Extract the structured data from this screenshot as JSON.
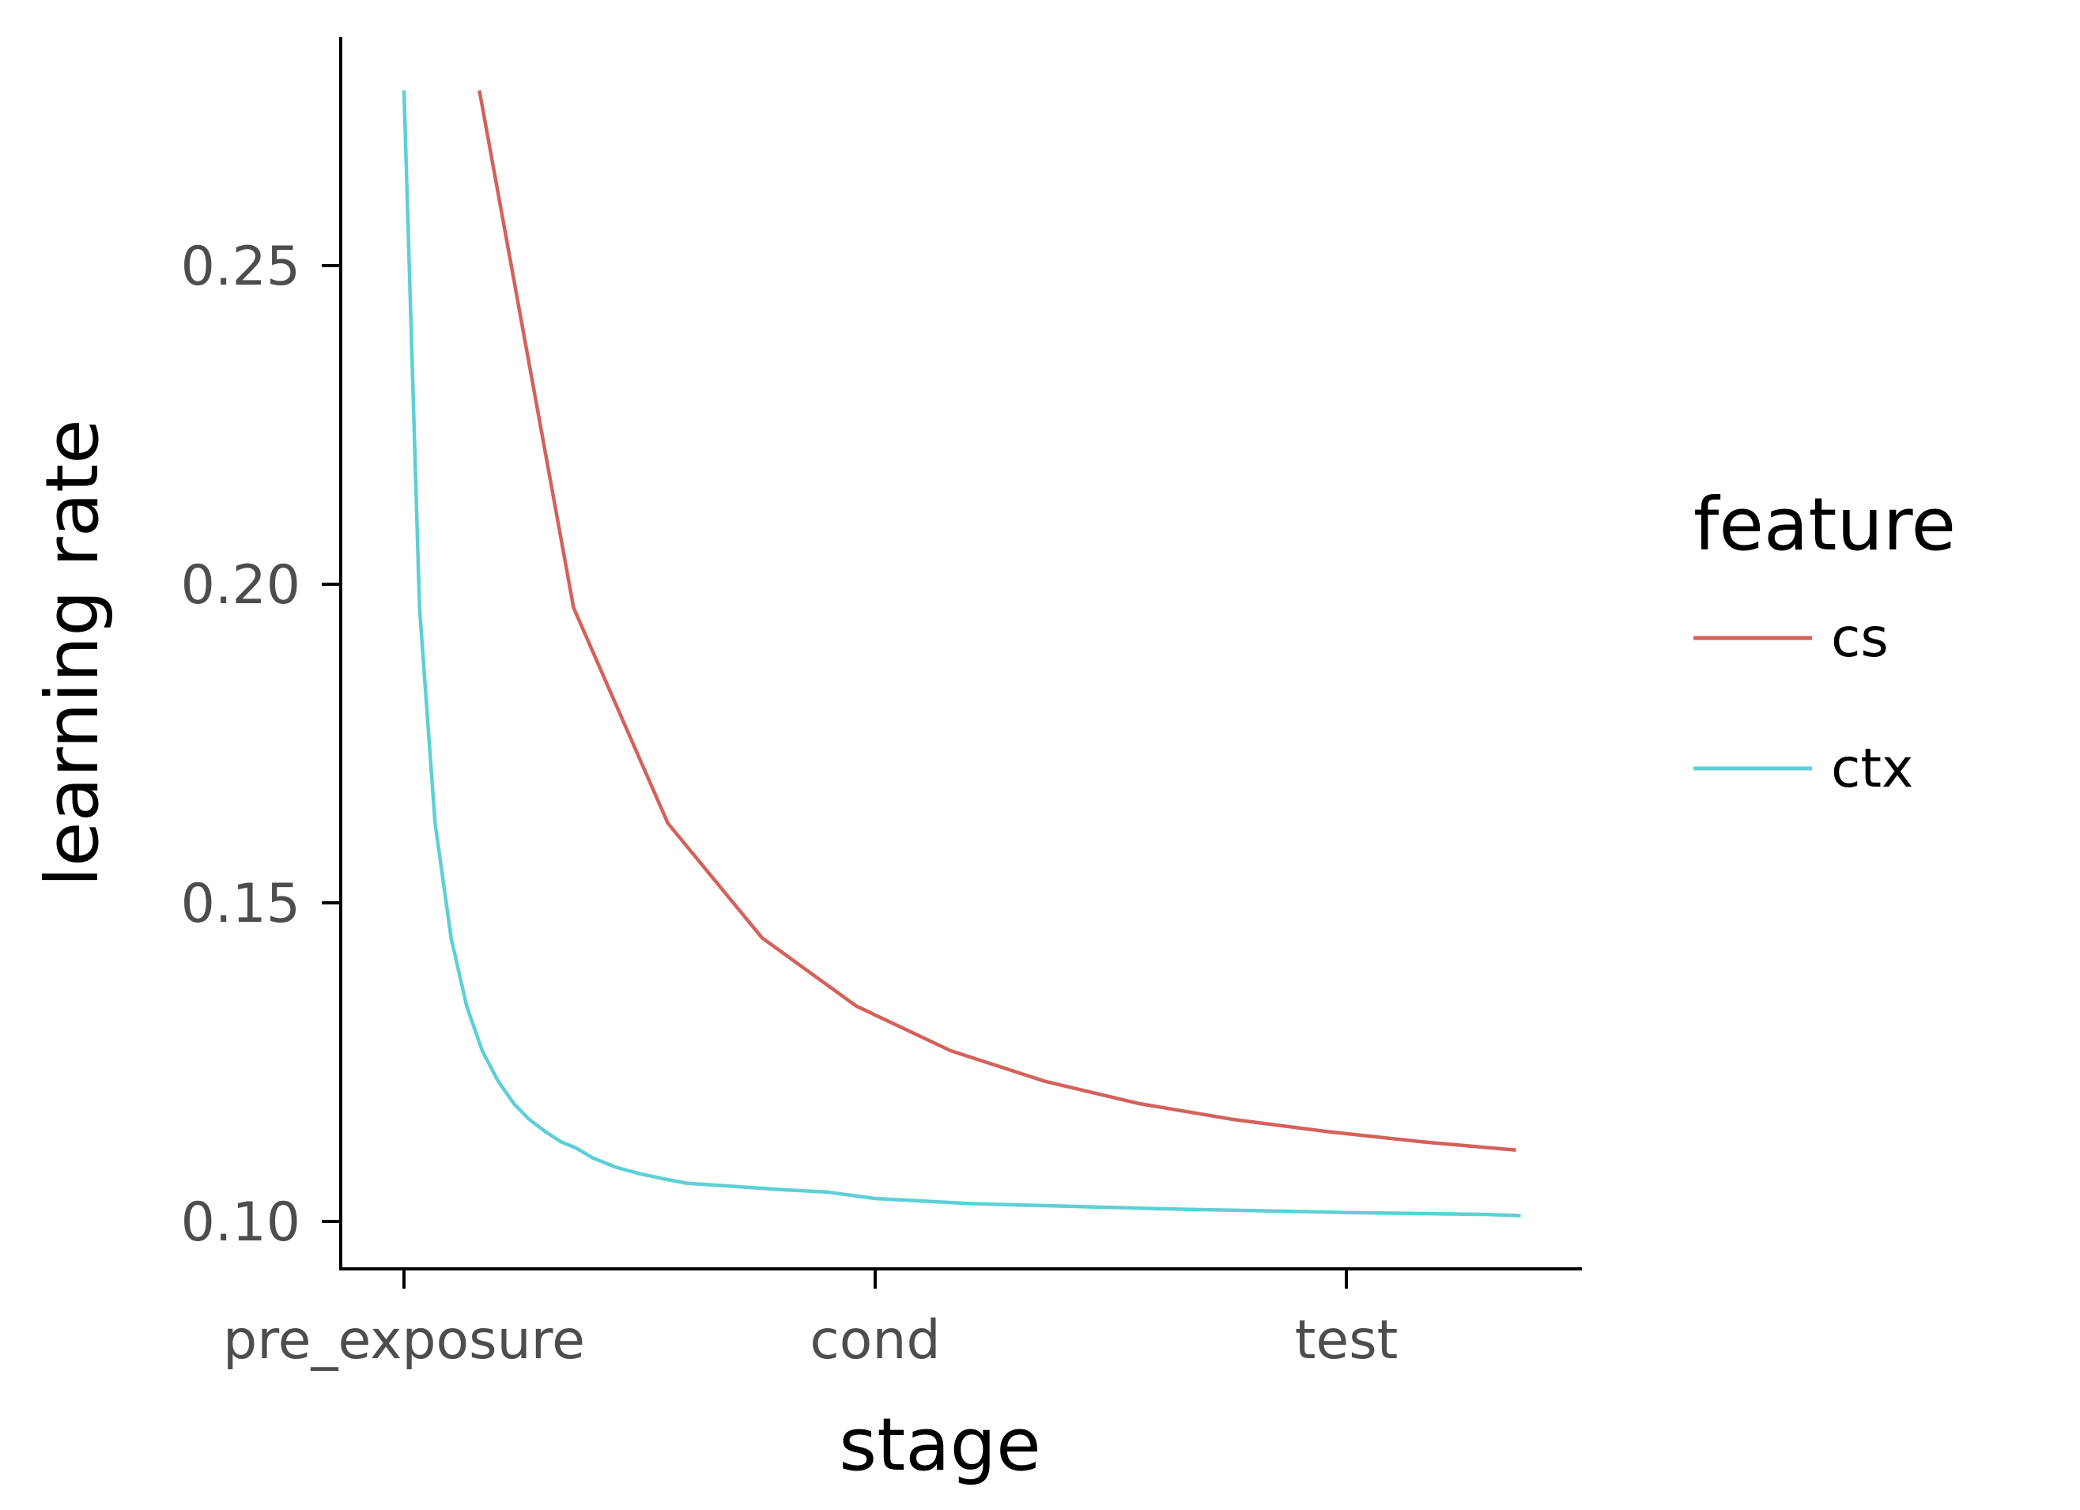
{
  "chart_data": {
    "type": "line",
    "title": "",
    "xlabel": "stage",
    "ylabel": "learning rate",
    "x_categories": [
      "pre_exposure",
      "cond",
      "test"
    ],
    "y_ticks": [
      "0.10",
      "0.15",
      "0.20",
      "0.25"
    ],
    "y_tick_values": [
      0.1,
      0.15,
      0.2,
      0.25
    ],
    "ylim": [
      0.0925,
      0.2855
    ],
    "grid": false,
    "legend": {
      "title": "feature",
      "position": "right",
      "entries": [
        "cs",
        "ctx"
      ]
    },
    "series": [
      {
        "name": "cs",
        "color": "#D4625A",
        "points": [
          [
            "pre_exposure",
            0.2775
          ],
          [
            "pre_exposure",
            0.1963
          ],
          [
            "pre_exposure",
            0.1625
          ],
          [
            "pre_exposure",
            0.1445
          ],
          [
            "cond",
            0.1338
          ],
          [
            "cond",
            0.1268
          ],
          [
            "cond",
            0.122
          ],
          [
            "test",
            0.1185
          ],
          [
            "test",
            0.116
          ],
          [
            "test",
            0.1141
          ],
          [
            "test",
            0.1125
          ],
          [
            "test",
            0.1112
          ]
        ],
        "x_positions": [
          0.16,
          0.36,
          0.56,
          0.76,
          0.96,
          1.16,
          1.36,
          1.56,
          1.76,
          1.96,
          2.16,
          2.36
        ]
      },
      {
        "name": "ctx",
        "color": "#5ECFD6",
        "points": [
          [
            "pre_exposure",
            0.2775
          ],
          [
            "pre_exposure",
            0.1963
          ],
          [
            "pre_exposure",
            0.1625
          ],
          [
            "pre_exposure",
            0.1445
          ],
          [
            "pre_exposure",
            0.1338
          ],
          [
            "pre_exposure",
            0.1268
          ],
          [
            "pre_exposure",
            0.122
          ],
          [
            "pre_exposure",
            0.1185
          ],
          [
            "pre_exposure",
            0.116
          ],
          [
            "pre_exposure",
            0.1141
          ],
          [
            "pre_exposure",
            0.1125
          ],
          [
            "pre_exposure",
            0.1115
          ],
          [
            "pre_exposure",
            0.11
          ],
          [
            "pre_exposure",
            0.1085
          ],
          [
            "pre_exposure",
            0.1075
          ],
          [
            "pre_exposure",
            0.1067
          ],
          [
            "pre_exposure",
            0.106
          ],
          [
            "pre_exposure",
            0.1055
          ],
          [
            "pre_exposure",
            0.105
          ],
          [
            "pre_exposure",
            0.1046
          ],
          [
            "cond",
            0.1036
          ],
          [
            "cond",
            0.1028
          ],
          [
            "cond",
            0.1024
          ],
          [
            "cond",
            0.102
          ],
          [
            "test",
            0.1017
          ],
          [
            "test",
            0.1014
          ],
          [
            "test",
            0.1012
          ],
          [
            "test",
            0.1011
          ],
          [
            "test",
            0.1009
          ]
        ],
        "x_positions": [
          0.0,
          0.033,
          0.066,
          0.1,
          0.133,
          0.166,
          0.2,
          0.233,
          0.266,
          0.3,
          0.333,
          0.366,
          0.4,
          0.45,
          0.5,
          0.55,
          0.6,
          0.7,
          0.8,
          0.9,
          1.0,
          1.2,
          1.4,
          1.6,
          1.8,
          2.0,
          2.2,
          2.3,
          2.37
        ]
      }
    ]
  }
}
